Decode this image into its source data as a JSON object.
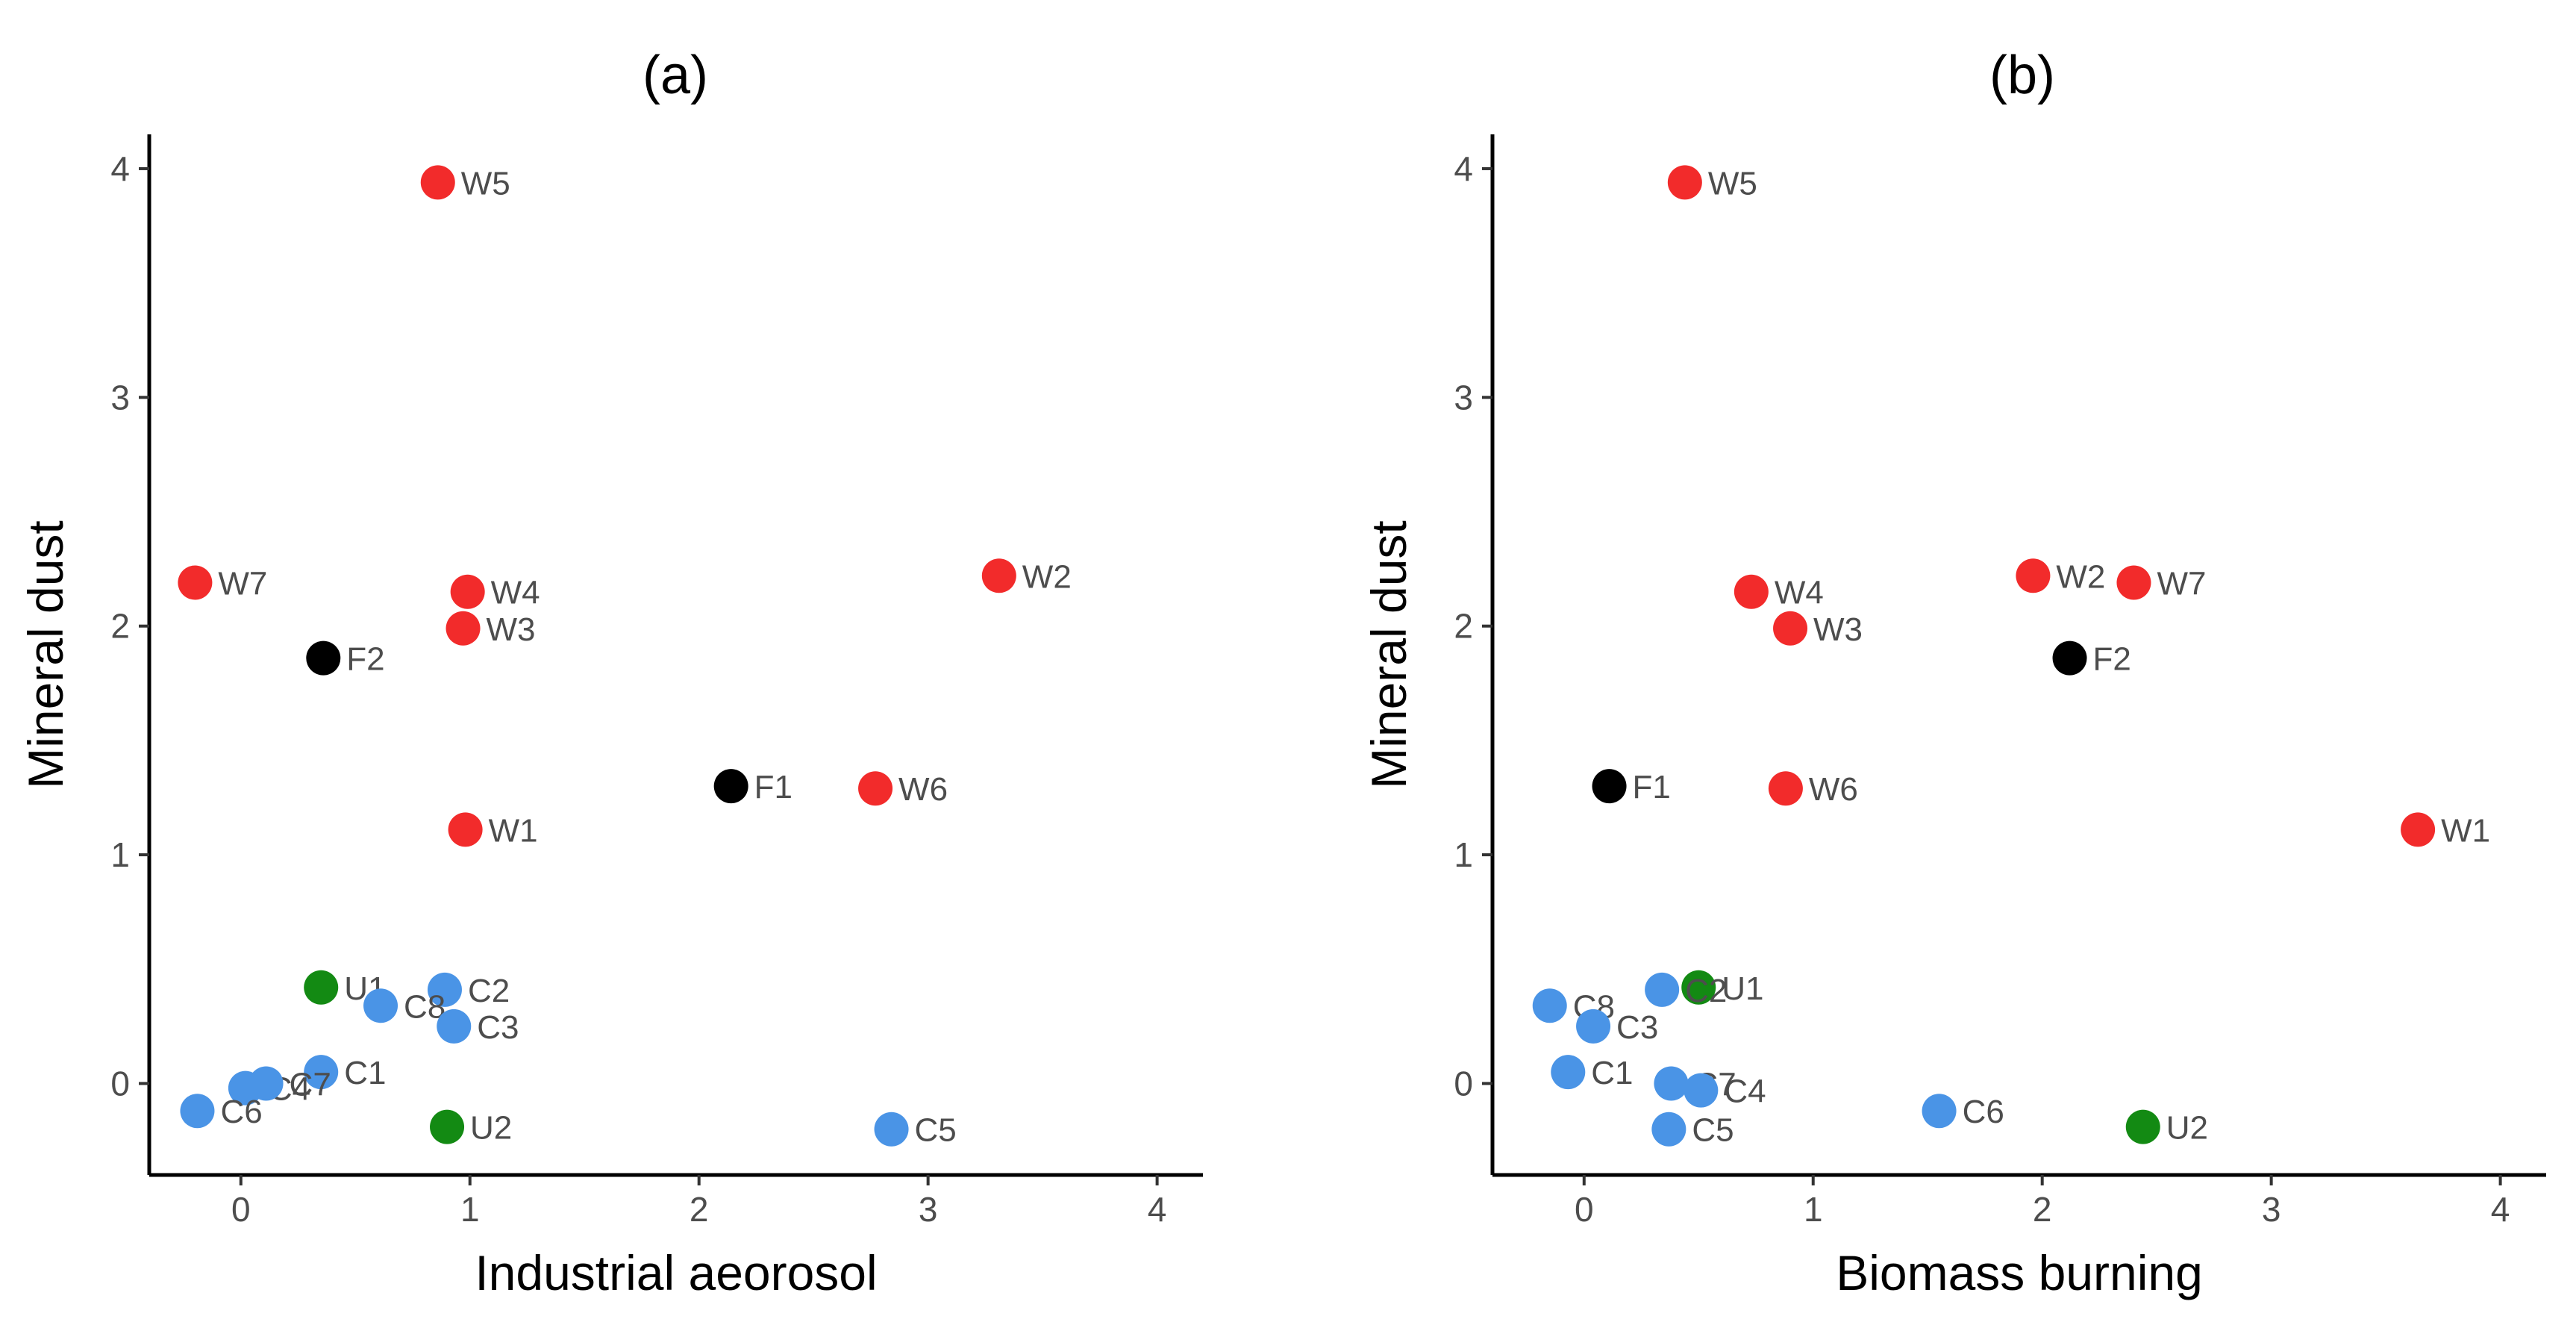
{
  "colors": {
    "W": "#f22b2b",
    "F": "#000000",
    "C": "#4a94e6",
    "U": "#138a13"
  },
  "chart_data": [
    {
      "type": "scatter",
      "title": "(a)",
      "xlabel": "Industrial aeorosol",
      "ylabel": "Mineral dust",
      "xlim": [
        -0.4,
        4.2
      ],
      "ylim": [
        -0.4,
        4.15
      ],
      "xticks": [
        "0",
        "1",
        "2",
        "3",
        "4"
      ],
      "yticks": [
        "0",
        "1",
        "2",
        "3",
        "4"
      ],
      "grid": false,
      "points": [
        {
          "label": "W5",
          "group": "W",
          "x": 0.86,
          "y": 3.94
        },
        {
          "label": "W7",
          "group": "W",
          "x": -0.2,
          "y": 2.19
        },
        {
          "label": "W4",
          "group": "W",
          "x": 0.99,
          "y": 2.15
        },
        {
          "label": "W3",
          "group": "W",
          "x": 0.97,
          "y": 1.99
        },
        {
          "label": "W2",
          "group": "W",
          "x": 3.31,
          "y": 2.22
        },
        {
          "label": "W6",
          "group": "W",
          "x": 2.77,
          "y": 1.29
        },
        {
          "label": "W1",
          "group": "W",
          "x": 0.98,
          "y": 1.11
        },
        {
          "label": "F2",
          "group": "F",
          "x": 0.36,
          "y": 1.86
        },
        {
          "label": "F1",
          "group": "F",
          "x": 2.14,
          "y": 1.3
        },
        {
          "label": "U1",
          "group": "U",
          "x": 0.35,
          "y": 0.42
        },
        {
          "label": "U2",
          "group": "U",
          "x": 0.9,
          "y": -0.19
        },
        {
          "label": "C2",
          "group": "C",
          "x": 0.89,
          "y": 0.41
        },
        {
          "label": "C8",
          "group": "C",
          "x": 0.61,
          "y": 0.34
        },
        {
          "label": "C3",
          "group": "C",
          "x": 0.93,
          "y": 0.25
        },
        {
          "label": "C1",
          "group": "C",
          "x": 0.35,
          "y": 0.05
        },
        {
          "label": "C4",
          "group": "C",
          "x": 0.02,
          "y": -0.02
        },
        {
          "label": "C7",
          "group": "C",
          "x": 0.11,
          "y": 0.0
        },
        {
          "label": "C6",
          "group": "C",
          "x": -0.19,
          "y": -0.12
        },
        {
          "label": "C5",
          "group": "C",
          "x": 2.84,
          "y": -0.2
        }
      ]
    },
    {
      "type": "scatter",
      "title": "(b)",
      "xlabel": "Biomass burning",
      "ylabel": "Mineral dust",
      "xlim": [
        -0.4,
        4.2
      ],
      "ylim": [
        -0.4,
        4.15
      ],
      "xticks": [
        "0",
        "1",
        "2",
        "3",
        "4"
      ],
      "yticks": [
        "0",
        "1",
        "2",
        "3",
        "4"
      ],
      "grid": false,
      "points": [
        {
          "label": "W5",
          "group": "W",
          "x": 0.44,
          "y": 3.94
        },
        {
          "label": "W4",
          "group": "W",
          "x": 0.73,
          "y": 2.15
        },
        {
          "label": "W3",
          "group": "W",
          "x": 0.9,
          "y": 1.99
        },
        {
          "label": "W2",
          "group": "W",
          "x": 1.96,
          "y": 2.22
        },
        {
          "label": "W7",
          "group": "W",
          "x": 2.4,
          "y": 2.19
        },
        {
          "label": "W6",
          "group": "W",
          "x": 0.88,
          "y": 1.29
        },
        {
          "label": "W1",
          "group": "W",
          "x": 3.64,
          "y": 1.11
        },
        {
          "label": "F2",
          "group": "F",
          "x": 2.12,
          "y": 1.86
        },
        {
          "label": "F1",
          "group": "F",
          "x": 0.11,
          "y": 1.3
        },
        {
          "label": "U1",
          "group": "U",
          "x": 0.5,
          "y": 0.42
        },
        {
          "label": "U2",
          "group": "U",
          "x": 2.44,
          "y": -0.19
        },
        {
          "label": "C2",
          "group": "C",
          "x": 0.34,
          "y": 0.41
        },
        {
          "label": "C8",
          "group": "C",
          "x": -0.15,
          "y": 0.34
        },
        {
          "label": "C3",
          "group": "C",
          "x": 0.04,
          "y": 0.25
        },
        {
          "label": "C1",
          "group": "C",
          "x": -0.07,
          "y": 0.05
        },
        {
          "label": "C7",
          "group": "C",
          "x": 0.38,
          "y": 0.0
        },
        {
          "label": "C4",
          "group": "C",
          "x": 0.51,
          "y": -0.03
        },
        {
          "label": "C6",
          "group": "C",
          "x": 1.55,
          "y": -0.12
        },
        {
          "label": "C5",
          "group": "C",
          "x": 0.37,
          "y": -0.2
        }
      ]
    }
  ]
}
